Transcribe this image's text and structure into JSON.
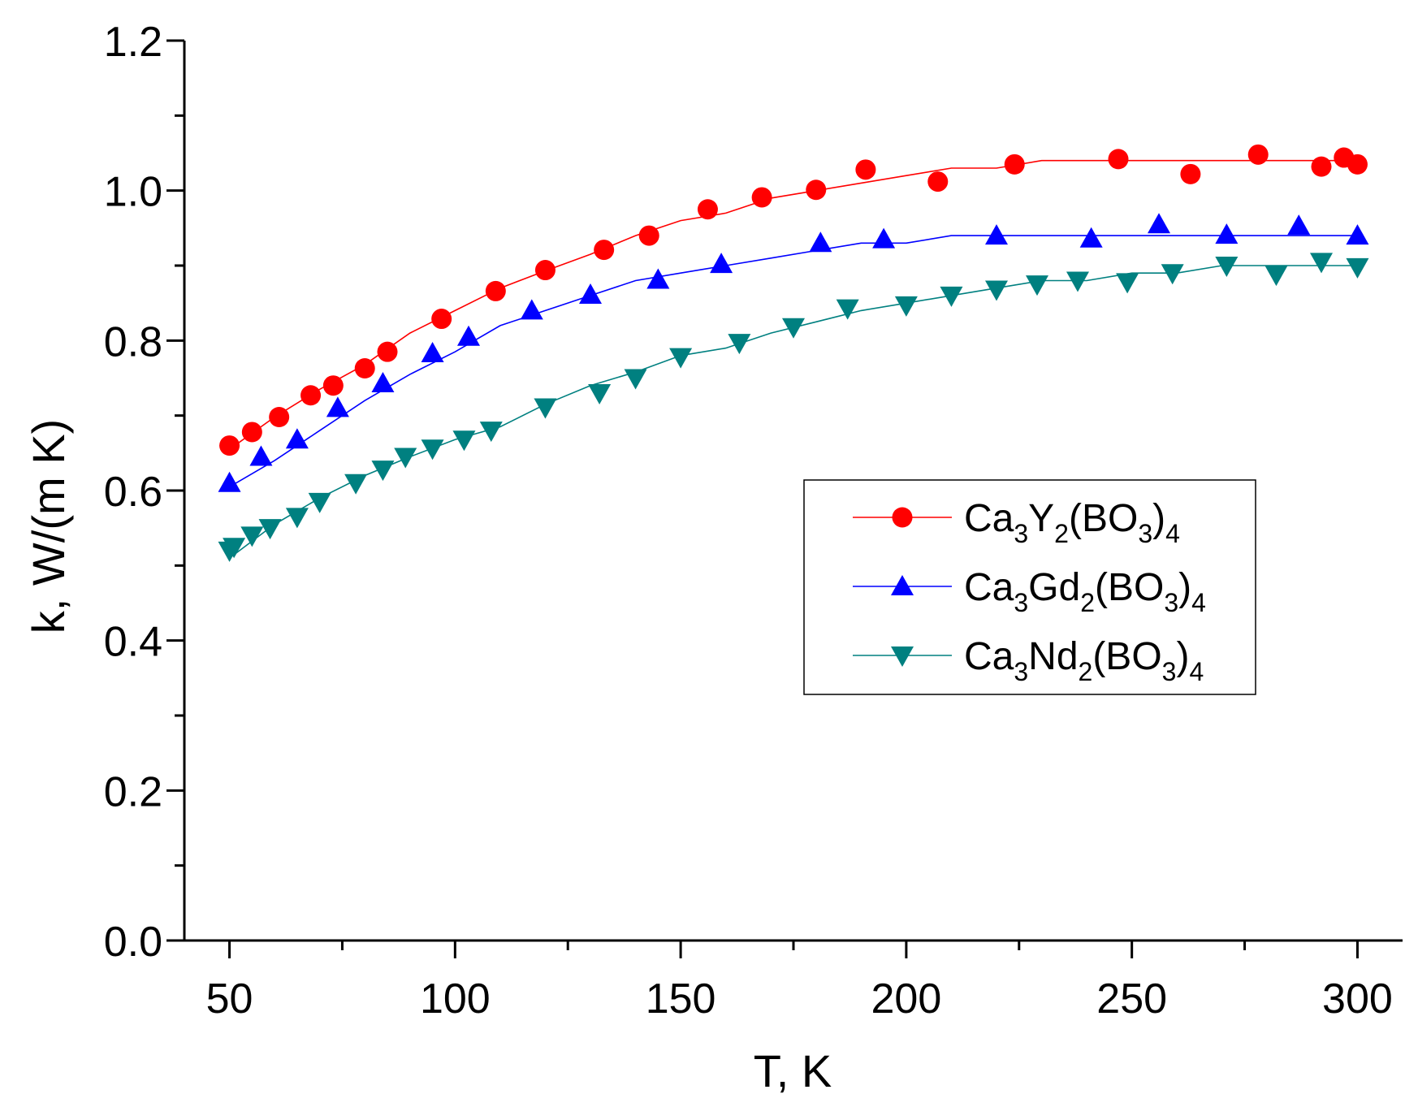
{
  "chart_data": {
    "type": "line",
    "title": "",
    "xlabel": "T, K",
    "ylabel": "k, W/(m K)",
    "xlim": [
      40,
      310
    ],
    "ylim": [
      0.0,
      1.2
    ],
    "x_ticks": [
      50,
      100,
      150,
      200,
      250,
      300
    ],
    "x_tick_labels": [
      "50",
      "100",
      "150",
      "200",
      "250",
      "300"
    ],
    "y_ticks": [
      0.0,
      0.2,
      0.4,
      0.6,
      0.8,
      1.0,
      1.2
    ],
    "y_tick_labels": [
      "0.0",
      "0.2",
      "0.4",
      "0.6",
      "0.8",
      "1.0",
      "1.2"
    ],
    "grid": false,
    "legend_position": "right-center",
    "series": [
      {
        "name": "Ca3Y2(BO3)4",
        "legend_parts": [
          {
            "t": "Ca"
          },
          {
            "t": "3",
            "sub": true
          },
          {
            "t": "Y"
          },
          {
            "t": "2",
            "sub": true
          },
          {
            "t": "(BO"
          },
          {
            "t": "3",
            "sub": true
          },
          {
            "t": ")"
          },
          {
            "t": "4",
            "sub": true
          }
        ],
        "color": "#ff0000",
        "marker": "circle",
        "points": [
          [
            50,
            0.66
          ],
          [
            55,
            0.678
          ],
          [
            61,
            0.698
          ],
          [
            68,
            0.727
          ],
          [
            73,
            0.74
          ],
          [
            80,
            0.763
          ],
          [
            85,
            0.785
          ],
          [
            97,
            0.829
          ],
          [
            109,
            0.866
          ],
          [
            120,
            0.894
          ],
          [
            133,
            0.921
          ],
          [
            143,
            0.94
          ],
          [
            156,
            0.975
          ],
          [
            168,
            0.991
          ],
          [
            180,
            1.001
          ],
          [
            191,
            1.028
          ],
          [
            207,
            1.012
          ],
          [
            224,
            1.035
          ],
          [
            247,
            1.042
          ],
          [
            263,
            1.022
          ],
          [
            278,
            1.048
          ],
          [
            292,
            1.032
          ],
          [
            297,
            1.044
          ],
          [
            300,
            1.035
          ]
        ],
        "fit": [
          [
            50,
            0.655
          ],
          [
            60,
            0.698
          ],
          [
            70,
            0.735
          ],
          [
            80,
            0.768
          ],
          [
            90,
            0.81
          ],
          [
            100,
            0.84
          ],
          [
            110,
            0.87
          ],
          [
            120,
            0.893
          ],
          [
            130,
            0.915
          ],
          [
            140,
            0.94
          ],
          [
            150,
            0.96
          ],
          [
            160,
            0.97
          ],
          [
            170,
            0.99
          ],
          [
            180,
            1.0
          ],
          [
            190,
            1.01
          ],
          [
            200,
            1.02
          ],
          [
            210,
            1.03
          ],
          [
            220,
            1.03
          ],
          [
            230,
            1.04
          ],
          [
            240,
            1.04
          ],
          [
            250,
            1.04
          ],
          [
            260,
            1.04
          ],
          [
            270,
            1.04
          ],
          [
            280,
            1.04
          ],
          [
            290,
            1.04
          ],
          [
            300,
            1.04
          ]
        ]
      },
      {
        "name": "Ca3Gd2(BO3)4",
        "legend_parts": [
          {
            "t": "Ca"
          },
          {
            "t": "3",
            "sub": true
          },
          {
            "t": "Gd"
          },
          {
            "t": "2",
            "sub": true
          },
          {
            "t": "(BO"
          },
          {
            "t": "3",
            "sub": true
          },
          {
            "t": ")"
          },
          {
            "t": "4",
            "sub": true
          }
        ],
        "color": "#0000ff",
        "marker": "triangle-up",
        "points": [
          [
            50,
            0.61
          ],
          [
            57,
            0.645
          ],
          [
            65,
            0.668
          ],
          [
            74,
            0.71
          ],
          [
            84,
            0.743
          ],
          [
            95,
            0.783
          ],
          [
            103,
            0.805
          ],
          [
            117,
            0.84
          ],
          [
            130,
            0.861
          ],
          [
            145,
            0.881
          ],
          [
            159,
            0.902
          ],
          [
            181,
            0.93
          ],
          [
            195,
            0.935
          ],
          [
            220,
            0.94
          ],
          [
            241,
            0.936
          ],
          [
            256,
            0.955
          ],
          [
            271,
            0.941
          ],
          [
            287,
            0.953
          ],
          [
            300,
            0.94
          ]
        ],
        "fit": [
          [
            50,
            0.605
          ],
          [
            60,
            0.64
          ],
          [
            70,
            0.68
          ],
          [
            80,
            0.72
          ],
          [
            90,
            0.755
          ],
          [
            100,
            0.785
          ],
          [
            110,
            0.82
          ],
          [
            120,
            0.84
          ],
          [
            130,
            0.86
          ],
          [
            140,
            0.88
          ],
          [
            150,
            0.89
          ],
          [
            160,
            0.9
          ],
          [
            170,
            0.91
          ],
          [
            180,
            0.92
          ],
          [
            190,
            0.93
          ],
          [
            200,
            0.93
          ],
          [
            210,
            0.94
          ],
          [
            220,
            0.94
          ],
          [
            230,
            0.94
          ],
          [
            240,
            0.94
          ],
          [
            250,
            0.94
          ],
          [
            260,
            0.94
          ],
          [
            270,
            0.94
          ],
          [
            280,
            0.94
          ],
          [
            290,
            0.94
          ],
          [
            300,
            0.94
          ]
        ]
      },
      {
        "name": "Ca3Nd2(BO3)4",
        "legend_parts": [
          {
            "t": "Ca"
          },
          {
            "t": "3",
            "sub": true
          },
          {
            "t": "Nd"
          },
          {
            "t": "2",
            "sub": true
          },
          {
            "t": "(BO"
          },
          {
            "t": "3",
            "sub": true
          },
          {
            "t": ")"
          },
          {
            "t": "4",
            "sub": true
          }
        ],
        "color": "#008080",
        "marker": "triangle-down",
        "points": [
          [
            50,
            0.52
          ],
          [
            51,
            0.525
          ],
          [
            55,
            0.54
          ],
          [
            59,
            0.55
          ],
          [
            65,
            0.565
          ],
          [
            70,
            0.585
          ],
          [
            78,
            0.61
          ],
          [
            84,
            0.628
          ],
          [
            89,
            0.645
          ],
          [
            95,
            0.656
          ],
          [
            102,
            0.668
          ],
          [
            108,
            0.68
          ],
          [
            120,
            0.711
          ],
          [
            132,
            0.73
          ],
          [
            140,
            0.75
          ],
          [
            150,
            0.778
          ],
          [
            163,
            0.797
          ],
          [
            175,
            0.818
          ],
          [
            187,
            0.843
          ],
          [
            200,
            0.847
          ],
          [
            210,
            0.86
          ],
          [
            220,
            0.868
          ],
          [
            229,
            0.875
          ],
          [
            238,
            0.88
          ],
          [
            249,
            0.878
          ],
          [
            259,
            0.89
          ],
          [
            271,
            0.9
          ],
          [
            282,
            0.888
          ],
          [
            292,
            0.905
          ],
          [
            300,
            0.898
          ]
        ],
        "fit": [
          [
            50,
            0.51
          ],
          [
            60,
            0.555
          ],
          [
            70,
            0.59
          ],
          [
            80,
            0.62
          ],
          [
            90,
            0.645
          ],
          [
            100,
            0.668
          ],
          [
            110,
            0.685
          ],
          [
            120,
            0.715
          ],
          [
            130,
            0.74
          ],
          [
            140,
            0.758
          ],
          [
            150,
            0.78
          ],
          [
            160,
            0.79
          ],
          [
            170,
            0.81
          ],
          [
            180,
            0.825
          ],
          [
            190,
            0.84
          ],
          [
            200,
            0.85
          ],
          [
            210,
            0.86
          ],
          [
            220,
            0.87
          ],
          [
            230,
            0.88
          ],
          [
            240,
            0.88
          ],
          [
            250,
            0.89
          ],
          [
            260,
            0.89
          ],
          [
            270,
            0.9
          ],
          [
            280,
            0.9
          ],
          [
            290,
            0.9
          ],
          [
            300,
            0.9
          ]
        ]
      }
    ]
  }
}
